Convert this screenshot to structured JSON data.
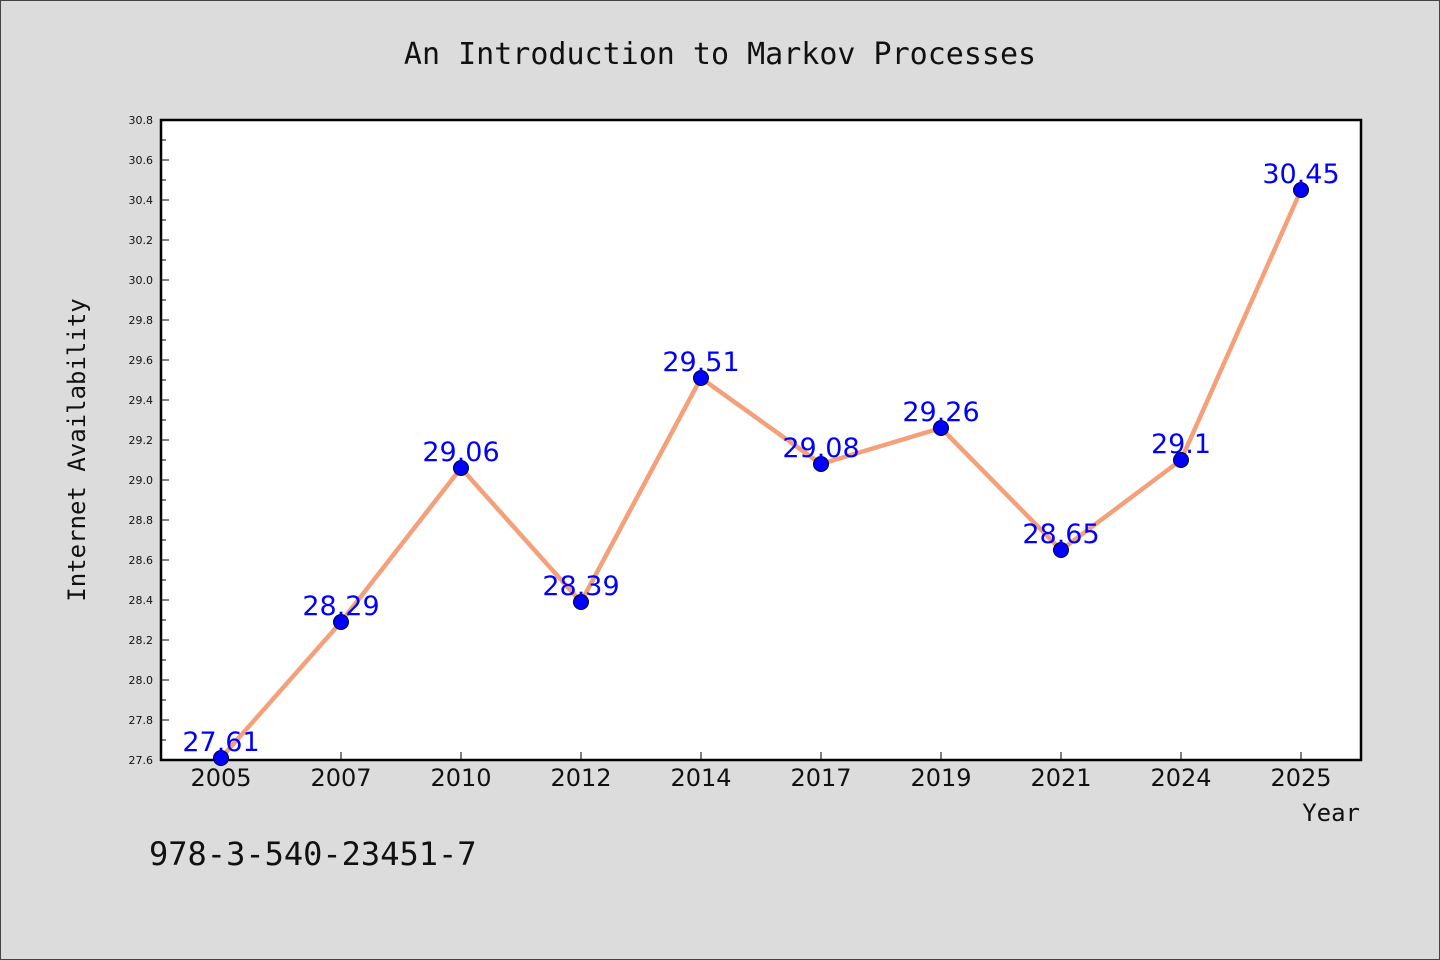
{
  "chart_data": {
    "type": "line",
    "title": "An Introduction to Markov Processes",
    "xlabel": "Year",
    "ylabel": "Internet Availability",
    "categories": [
      "2005",
      "2007",
      "2010",
      "2012",
      "2014",
      "2017",
      "2019",
      "2021",
      "2024",
      "2025"
    ],
    "values": [
      27.61,
      28.29,
      29.06,
      28.39,
      29.51,
      29.08,
      29.26,
      28.65,
      29.1,
      30.45
    ],
    "data_labels": [
      "27.61",
      "28.29",
      "29.06",
      "28.39",
      "29.51",
      "29.08",
      "29.26",
      "28.65",
      "29.1",
      "30.45"
    ],
    "ylim": [
      27.6,
      30.8
    ],
    "yticks": [
      "27.6",
      "27.8",
      "28.0",
      "28.2",
      "28.4",
      "28.6",
      "28.8",
      "29.0",
      "29.2",
      "29.4",
      "29.6",
      "29.8",
      "30.0",
      "30.2",
      "30.4",
      "30.6",
      "30.8"
    ],
    "grid": false,
    "colors": {
      "line": "#f4a07a",
      "marker": "#0000ff",
      "label": "#0000ff",
      "background": "#dcdcdc",
      "plot_background": "#ffffff"
    }
  },
  "footer_note": "978-3-540-23451-7"
}
